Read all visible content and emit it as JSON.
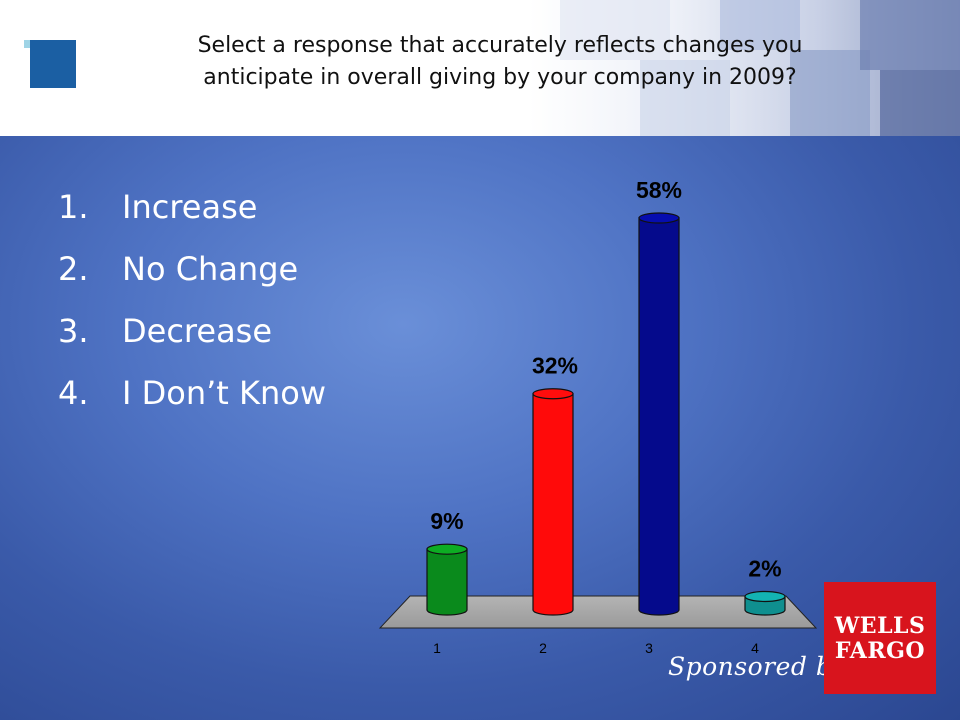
{
  "header": {
    "question_line1": "Select a response that accurately reflects changes you",
    "question_line2": "anticipate in overall giving by your company in 2009?"
  },
  "options": [
    {
      "num": "1.",
      "label": "Increase"
    },
    {
      "num": "2.",
      "label": "No Change"
    },
    {
      "num": "3.",
      "label": "Decrease"
    },
    {
      "num": "4.",
      "label": "I Don’t Know"
    }
  ],
  "chart_data": {
    "type": "bar",
    "categories": [
      "1",
      "2",
      "3",
      "4"
    ],
    "values": [
      9,
      32,
      58,
      2
    ],
    "data_labels": [
      "9%",
      "32%",
      "58%",
      "2%"
    ],
    "colors": [
      "#0a8a1c",
      "#ff0a0a",
      "#050a8c",
      "#0f8f8f"
    ],
    "ylim": [
      0,
      58
    ],
    "grid": false,
    "title": "",
    "xlabel": "",
    "ylabel": ""
  },
  "footer": {
    "sponsored_by": "Sponsored by",
    "logo_line1": "WELLS",
    "logo_line2": "FARGO"
  },
  "colors": {
    "header_logo_blue": "#1b5fa3",
    "background_blue": "#4f73c4",
    "sponsor_red": "#d8141d"
  }
}
